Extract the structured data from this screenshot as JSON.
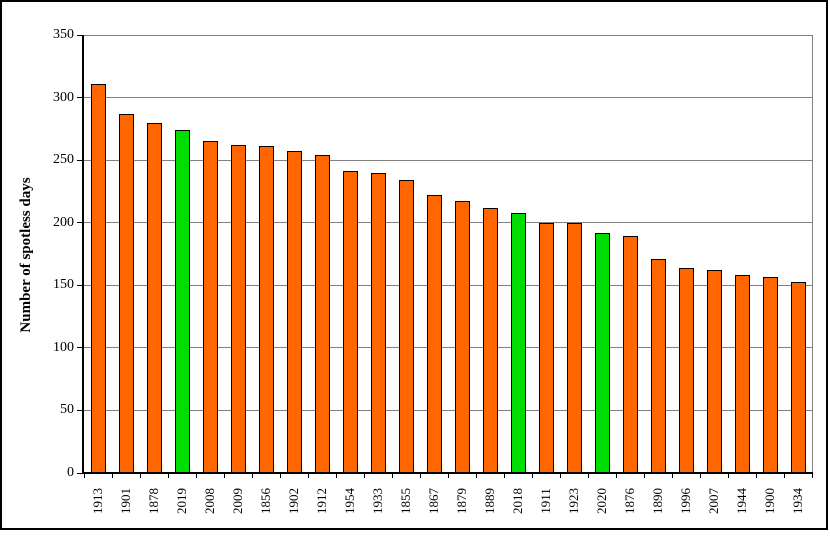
{
  "chart_data": {
    "type": "bar",
    "title": "",
    "ylabel": "Number of spotless days",
    "xlabel": "",
    "ylim": [
      0,
      350
    ],
    "ytick_step": 50,
    "yticks": [
      0,
      50,
      100,
      150,
      200,
      250,
      300,
      350
    ],
    "grid": true,
    "legend": false,
    "categories": [
      "1913",
      "1901",
      "1878",
      "2019",
      "2008",
      "2009",
      "1856",
      "1902",
      "1912",
      "1954",
      "1933",
      "1855",
      "1867",
      "1879",
      "1889",
      "2018",
      "1911",
      "1923",
      "2020",
      "1876",
      "1890",
      "1996",
      "2007",
      "1944",
      "1900",
      "1934"
    ],
    "values": [
      311,
      287,
      280,
      274,
      265,
      262,
      261,
      257,
      254,
      241,
      240,
      234,
      222,
      217,
      212,
      208,
      200,
      200,
      192,
      189,
      171,
      164,
      162,
      158,
      157,
      153
    ],
    "highlighted_categories": [
      "2019",
      "2018",
      "2020"
    ],
    "colors": {
      "bar_default": "#FF6600",
      "bar_highlight": "#00DD00",
      "bar_border": "#000000",
      "gridline": "#808080",
      "axis": "#000000",
      "background": "#FFFFFF",
      "frame_border": "#000000"
    }
  }
}
